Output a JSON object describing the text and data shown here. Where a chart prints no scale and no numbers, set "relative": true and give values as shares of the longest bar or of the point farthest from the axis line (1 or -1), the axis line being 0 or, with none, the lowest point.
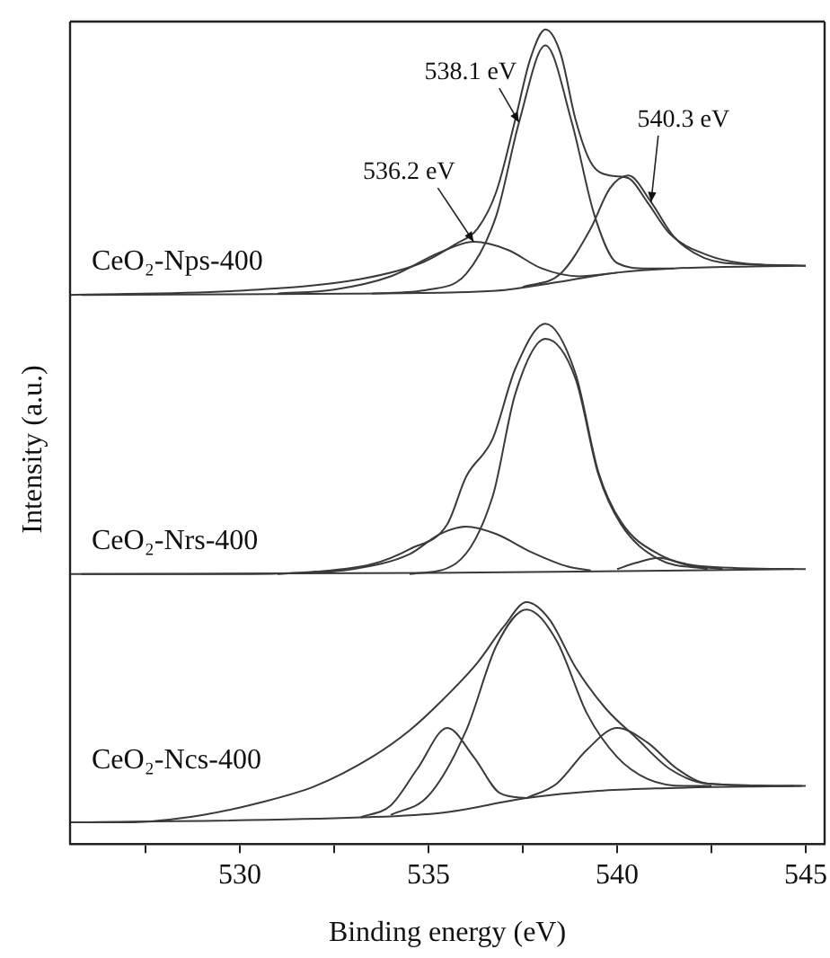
{
  "chart_data": [
    {
      "type": "line",
      "relative": true,
      "xlim": [
        525.5,
        545.5
      ],
      "tick_labels": false,
      "annotations": [
        "CeO₂-Nps-400",
        {
          "text": "538.1 eV",
          "x": 537.4,
          "y": 0.65
        },
        {
          "text": "536.2 eV",
          "x": 536.2,
          "y": 0.2
        },
        {
          "text": "540.3 eV",
          "x": 540.9,
          "y": 0.35
        }
      ],
      "series": [
        {
          "color": "#3a3a3a",
          "x": [
            525.5,
            530,
            533.2,
            534.8,
            535.7,
            536.3,
            536.8,
            537.3,
            537.7,
            538.1,
            538.5,
            538.9,
            539.3,
            539.8,
            540.3,
            540.8,
            541.4,
            542.4,
            543.3,
            545
          ],
          "values": [
            0,
            0.016,
            0.06,
            0.12,
            0.19,
            0.25,
            0.39,
            0.66,
            0.89,
            1.0,
            0.91,
            0.66,
            0.5,
            0.45,
            0.44,
            0.35,
            0.23,
            0.15,
            0.12,
            0.11
          ]
        },
        {
          "color": "#3a3a3a",
          "x": [
            525.8,
            533,
            536.8,
            538.5,
            540,
            541.5,
            544.7
          ],
          "values": [
            0,
            0.005,
            0.016,
            0.05,
            0.084,
            0.1,
            0.11
          ]
        },
        {
          "color": "#3a3a3a",
          "x": [
            531,
            532.5,
            534,
            535.3,
            536.2,
            537.1,
            538,
            539,
            540
          ],
          "values": [
            0.005,
            0.02,
            0.07,
            0.16,
            0.2,
            0.17,
            0.1,
            0.07,
            0.084
          ]
        },
        {
          "color": "#3a3a3a",
          "x": [
            533.5,
            535,
            536,
            536.8,
            537.4,
            538.1,
            538.8,
            539.4,
            540,
            540.8,
            541.5
          ],
          "values": [
            0.005,
            0.02,
            0.08,
            0.3,
            0.65,
            0.94,
            0.65,
            0.3,
            0.12,
            0.1,
            0.1
          ]
        },
        {
          "color": "#3a3a3a",
          "x": [
            537.5,
            538.5,
            539.3,
            539.8,
            540.3,
            540.9,
            541.5,
            542.3,
            543.5,
            545
          ],
          "values": [
            0.03,
            0.08,
            0.25,
            0.4,
            0.45,
            0.35,
            0.22,
            0.14,
            0.115,
            0.11
          ]
        }
      ]
    },
    {
      "type": "line",
      "relative": true,
      "xlim": [
        525.5,
        545.5
      ],
      "tick_labels": false,
      "ylabel": "Intensity (a.u.)",
      "annotations": [
        "CeO₂-Nrs-400"
      ],
      "series": [
        {
          "color": "#3a3a3a",
          "x": [
            525.5,
            530,
            532,
            533.5,
            534.5,
            535.5,
            536,
            536.7,
            537.3,
            538.1,
            538.9,
            539.5,
            540.1,
            541.1,
            542.4,
            545
          ],
          "values": [
            0,
            0,
            0.01,
            0.04,
            0.1,
            0.2,
            0.39,
            0.54,
            0.82,
            1.0,
            0.8,
            0.41,
            0.21,
            0.08,
            0.03,
            0.02
          ]
        },
        {
          "color": "#3a3a3a",
          "x": [
            525.8,
            535,
            539,
            544.7
          ],
          "values": [
            0,
            0.005,
            0.01,
            0.02
          ]
        },
        {
          "color": "#3a3a3a",
          "x": [
            531,
            533,
            534.5,
            535.3,
            536,
            536.8,
            537.7,
            538.7,
            539.3
          ],
          "values": [
            0,
            0.02,
            0.08,
            0.16,
            0.19,
            0.16,
            0.09,
            0.03,
            0.015
          ]
        },
        {
          "color": "#3a3a3a",
          "x": [
            534.5,
            535.7,
            536.7,
            537.3,
            538.1,
            538.9,
            539.5,
            540.1,
            541.1,
            542.4
          ],
          "values": [
            0,
            0.04,
            0.31,
            0.72,
            0.94,
            0.78,
            0.4,
            0.2,
            0.06,
            0.02
          ]
        },
        {
          "color": "#3a3a3a",
          "x": [
            540,
            540.5,
            541.1,
            541.9,
            542.8
          ],
          "values": [
            0.02,
            0.045,
            0.065,
            0.035,
            0.02
          ]
        }
      ]
    },
    {
      "type": "line",
      "relative": true,
      "xlim": [
        525.5,
        545.5
      ],
      "tick_labels": "x",
      "xlabel": "Binding energy (eV)",
      "annotations": [
        "CeO₂-Ncs-400"
      ],
      "xticks": [
        {
          "value": 527.5,
          "label": null
        },
        530,
        {
          "value": 532.5,
          "label": null
        },
        535,
        {
          "value": 537.5,
          "label": null
        },
        540,
        {
          "value": 542.5,
          "label": null
        },
        545
      ],
      "series": [
        {
          "color": "#3a3a3a",
          "x": [
            525.5,
            527,
            529,
            530.5,
            532,
            533.5,
            534.5,
            535.4,
            536.3,
            537,
            537.6,
            538.2,
            538.9,
            539.7,
            540.5,
            541.4,
            542.4,
            545
          ],
          "values": [
            0.09,
            0.09,
            0.12,
            0.17,
            0.24,
            0.36,
            0.47,
            0.6,
            0.75,
            0.9,
            1.0,
            0.93,
            0.73,
            0.56,
            0.44,
            0.31,
            0.25,
            0.24
          ]
        },
        {
          "color": "#3a3a3a",
          "x": [
            525.8,
            533.2,
            535.4,
            537.6,
            539.5,
            541,
            544.7
          ],
          "values": [
            0.09,
            0.11,
            0.13,
            0.19,
            0.22,
            0.23,
            0.24
          ]
        },
        {
          "color": "#3a3a3a",
          "x": [
            533.2,
            534,
            534.7,
            535.5,
            536.2,
            536.9,
            537.6
          ],
          "values": [
            0.11,
            0.16,
            0.31,
            0.48,
            0.36,
            0.21,
            0.19
          ]
        },
        {
          "color": "#3a3a3a",
          "x": [
            534,
            535,
            536,
            536.8,
            537.6,
            538.4,
            539.2,
            540,
            540.8,
            541.8,
            542.5
          ],
          "values": [
            0.12,
            0.2,
            0.47,
            0.82,
            0.97,
            0.84,
            0.54,
            0.36,
            0.27,
            0.24,
            0.24
          ]
        },
        {
          "color": "#3a3a3a",
          "x": [
            537.6,
            538.4,
            539.2,
            540,
            540.8,
            541.6,
            542.4,
            544.9
          ],
          "values": [
            0.19,
            0.25,
            0.39,
            0.48,
            0.42,
            0.31,
            0.25,
            0.24
          ]
        }
      ]
    }
  ]
}
